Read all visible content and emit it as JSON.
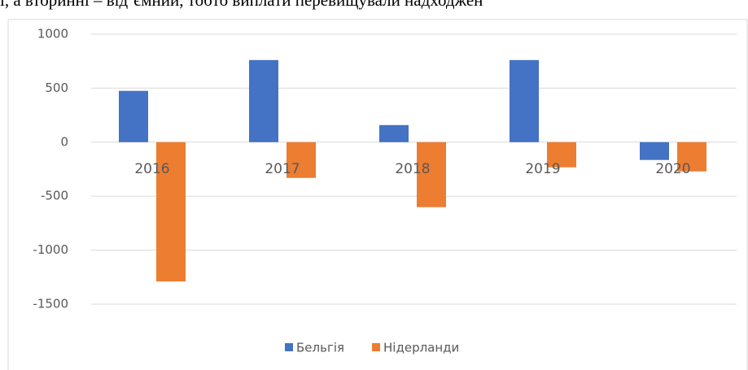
{
  "text": "і, а вторинні – від’ємний, тобто виплати перевищували надходжен",
  "chart_data": {
    "type": "bar",
    "categories": [
      "2016",
      "2017",
      "2018",
      "2019",
      "2020"
    ],
    "series": [
      {
        "name": "Бельгія",
        "color": "#4472c4",
        "values": [
          475,
          760,
          158,
          760,
          -165
        ]
      },
      {
        "name": "Нідерланди",
        "color": "#ed7d31",
        "values": [
          -1290,
          -331,
          -602,
          -233,
          -271
        ]
      }
    ],
    "ylim": [
      -1500,
      1000
    ],
    "yticks": [
      -1500,
      -1000,
      -500,
      0,
      500,
      1000
    ],
    "grid": true,
    "legend": "bottom"
  }
}
